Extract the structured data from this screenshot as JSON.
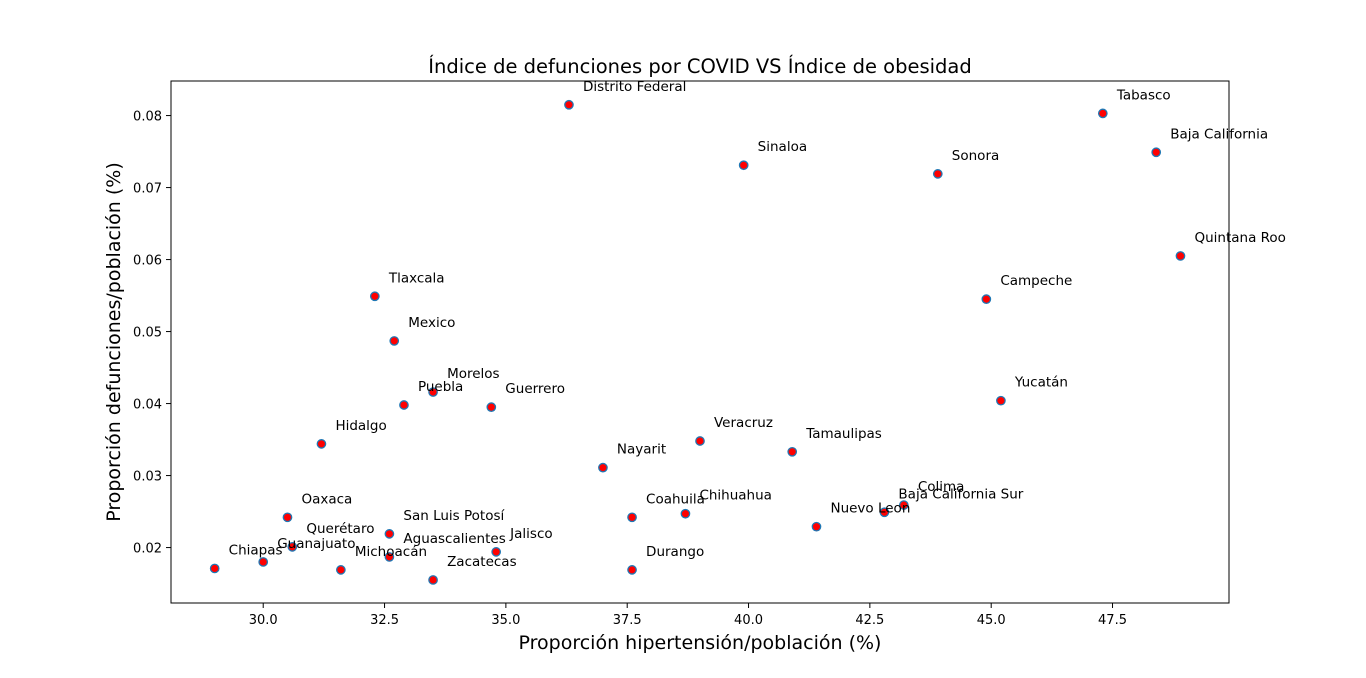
{
  "chart_data": {
    "type": "scatter",
    "title": "Índice de defunciones por COVID VS Índice de obesidad",
    "xlabel": "Proporción hipertensión/población (%)",
    "ylabel": "Proporción defunciones/población (%)",
    "xlim": [
      28.1,
      49.9
    ],
    "ylim": [
      0.0123,
      0.0848
    ],
    "xticks": [
      30.0,
      32.5,
      35.0,
      37.5,
      40.0,
      42.5,
      45.0,
      47.5
    ],
    "xtick_labels": [
      "30.0",
      "32.5",
      "35.0",
      "37.5",
      "40.0",
      "42.5",
      "45.0",
      "47.5"
    ],
    "yticks": [
      0.02,
      0.03,
      0.04,
      0.05,
      0.06,
      0.07,
      0.08
    ],
    "ytick_labels": [
      "0.02",
      "0.03",
      "0.04",
      "0.05",
      "0.06",
      "0.07",
      "0.08"
    ],
    "grid": false,
    "marker_face_color": "#ff0000",
    "marker_edge_color": "#1f77b4",
    "points": [
      {
        "label": "Distrito Federal",
        "x": 36.3,
        "y": 0.0815
      },
      {
        "label": "Tabasco",
        "x": 47.3,
        "y": 0.0803
      },
      {
        "label": "Baja California",
        "x": 48.4,
        "y": 0.0749
      },
      {
        "label": "Sinaloa",
        "x": 39.9,
        "y": 0.0731
      },
      {
        "label": "Sonora",
        "x": 43.9,
        "y": 0.0719
      },
      {
        "label": "Quintana Roo",
        "x": 48.9,
        "y": 0.0605
      },
      {
        "label": "Tlaxcala",
        "x": 32.3,
        "y": 0.0549
      },
      {
        "label": "Campeche",
        "x": 44.9,
        "y": 0.0545
      },
      {
        "label": "Mexico",
        "x": 32.7,
        "y": 0.0487
      },
      {
        "label": "Morelos",
        "x": 33.5,
        "y": 0.0416
      },
      {
        "label": "Yucatán",
        "x": 45.2,
        "y": 0.0404
      },
      {
        "label": "Puebla",
        "x": 32.9,
        "y": 0.0398
      },
      {
        "label": "Guerrero",
        "x": 34.7,
        "y": 0.0395
      },
      {
        "label": "Veracruz",
        "x": 39.0,
        "y": 0.0348
      },
      {
        "label": "Hidalgo",
        "x": 31.2,
        "y": 0.0344
      },
      {
        "label": "Tamaulipas",
        "x": 40.9,
        "y": 0.0333
      },
      {
        "label": "Nayarit",
        "x": 37.0,
        "y": 0.0311
      },
      {
        "label": "Colima",
        "x": 43.2,
        "y": 0.0259
      },
      {
        "label": "Baja California Sur",
        "x": 42.8,
        "y": 0.0249
      },
      {
        "label": "Chihuahua",
        "x": 38.7,
        "y": 0.0247
      },
      {
        "label": "Oaxaca",
        "x": 30.5,
        "y": 0.0242
      },
      {
        "label": "Coahuila",
        "x": 37.6,
        "y": 0.0242
      },
      {
        "label": "Nuevo Leon",
        "x": 41.4,
        "y": 0.0229
      },
      {
        "label": "San Luis Potosí",
        "x": 32.6,
        "y": 0.0219
      },
      {
        "label": "Querétaro",
        "x": 30.6,
        "y": 0.0201
      },
      {
        "label": "Jalisco",
        "x": 34.8,
        "y": 0.0194
      },
      {
        "label": "Aguascalientes",
        "x": 32.6,
        "y": 0.0187
      },
      {
        "label": "Guanajuato",
        "x": 30.0,
        "y": 0.018
      },
      {
        "label": "Chiapas",
        "x": 29.0,
        "y": 0.0171
      },
      {
        "label": "Michoacán",
        "x": 31.6,
        "y": 0.0169
      },
      {
        "label": "Durango",
        "x": 37.6,
        "y": 0.0169
      },
      {
        "label": "Zacatecas",
        "x": 33.5,
        "y": 0.0155
      }
    ]
  }
}
